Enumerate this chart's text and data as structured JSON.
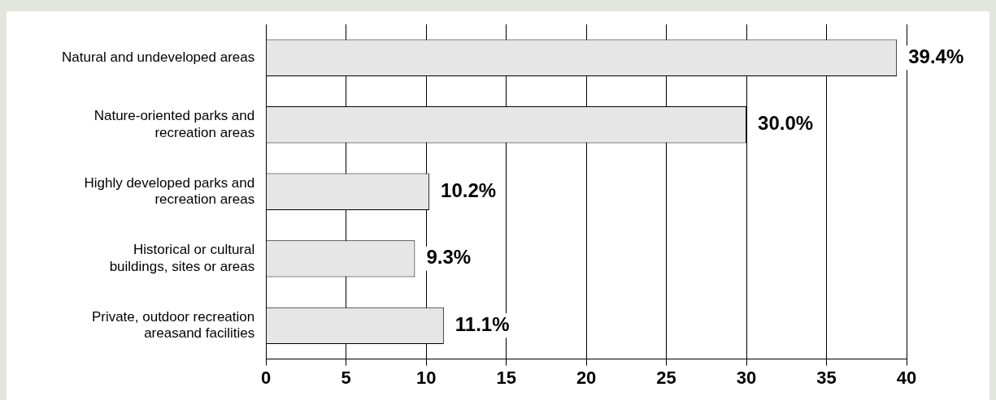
{
  "chart_data": {
    "type": "bar",
    "orientation": "horizontal",
    "categories": [
      "Natural and undeveloped areas",
      "Nature-oriented parks and recreation areas",
      "Highly developed parks and recreation areas",
      "Historical or cultural buildings, sites or areas",
      "Private, outdoor recreation areasand facilities"
    ],
    "values": [
      39.4,
      30.0,
      10.2,
      9.3,
      11.1
    ],
    "value_labels": [
      "39.4%",
      "30.0%",
      "10.2%",
      "9.3%",
      "11.1%"
    ],
    "color": "#e6e6e6",
    "xlim": [
      0,
      40
    ],
    "xticks": [
      0,
      5,
      10,
      15,
      20,
      25,
      30,
      35,
      40
    ],
    "grid": "x",
    "legend": false
  }
}
